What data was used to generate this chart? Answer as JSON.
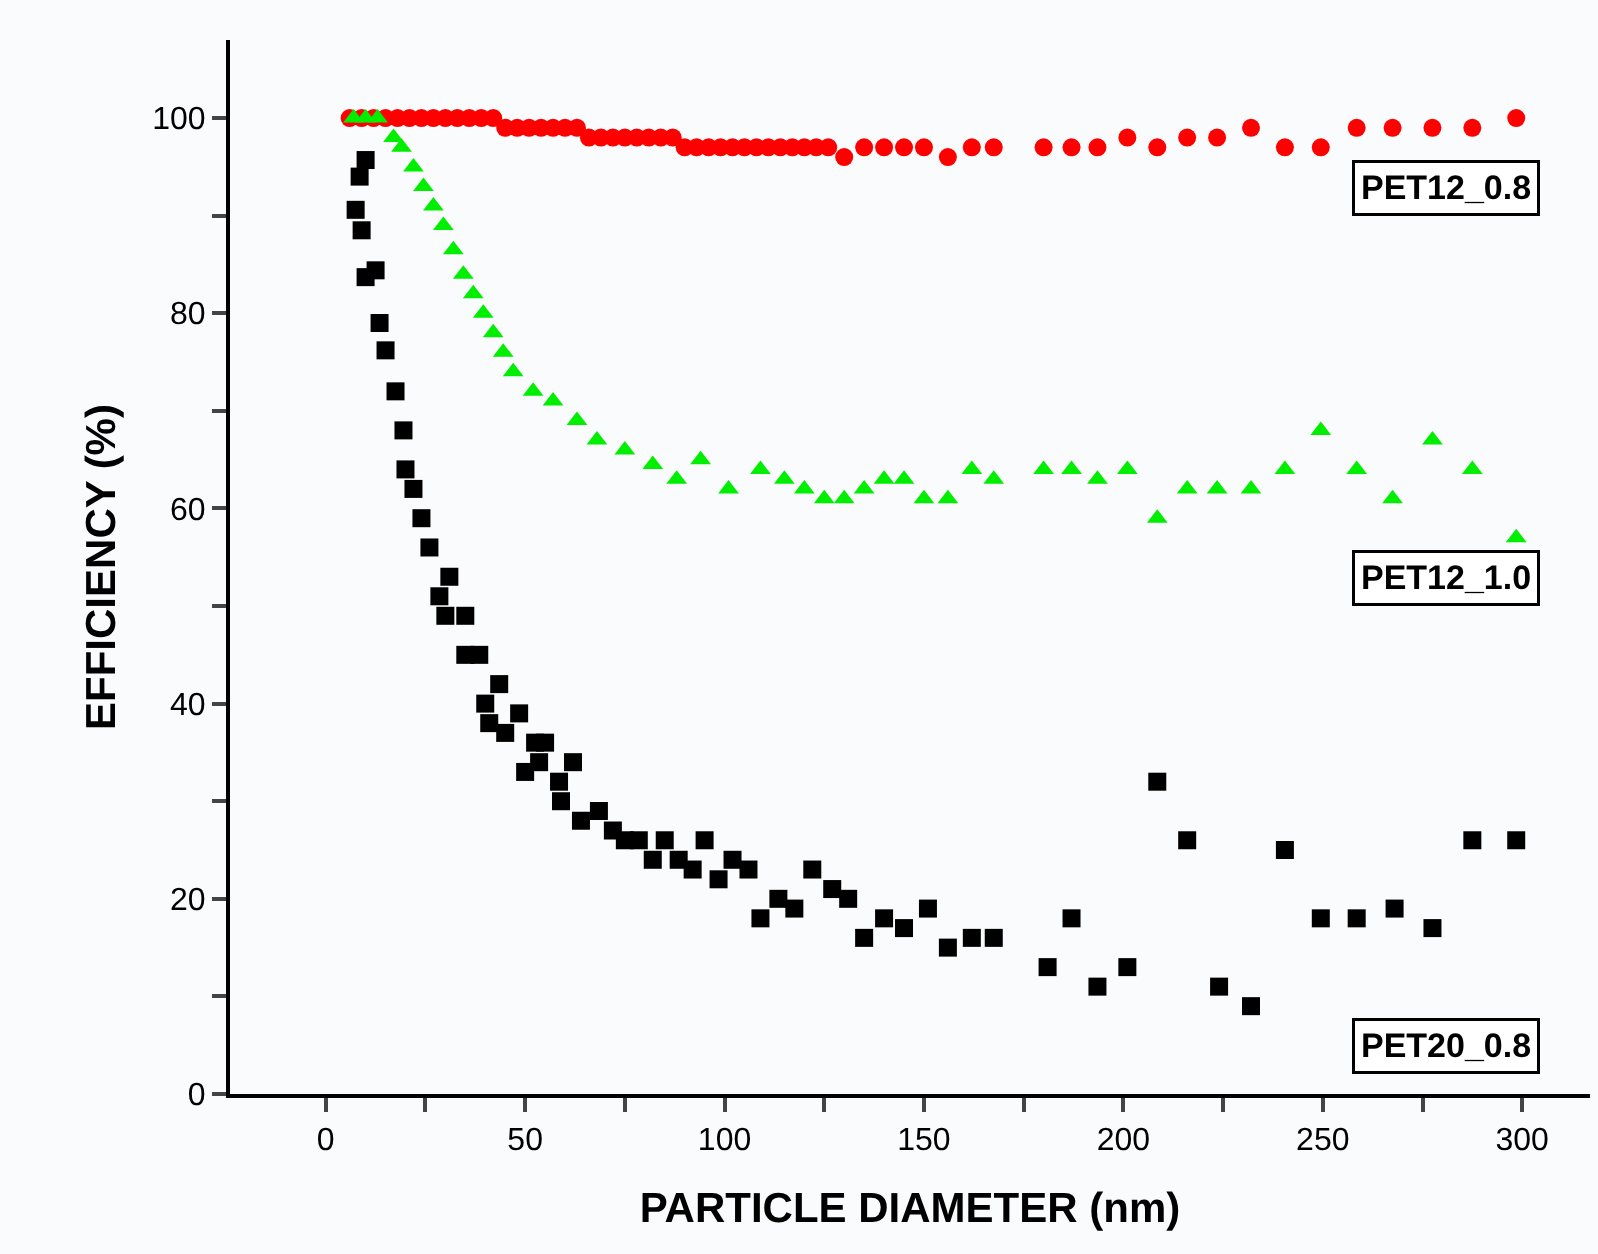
{
  "chart_data": {
    "type": "scatter",
    "xlabel": "PARTICLE DIAMETER (nm)",
    "ylabel": "EFFICIENCY (%)",
    "xlim": [
      -24,
      317
    ],
    "xticks": [
      0,
      {
        "value": 25,
        "label": null
      },
      50,
      {
        "value": 75,
        "label": null
      },
      100,
      {
        "value": 125,
        "label": null
      },
      150,
      {
        "value": 175,
        "label": null
      },
      200,
      {
        "value": 225,
        "label": null
      },
      250,
      {
        "value": 275,
        "label": null
      },
      300
    ],
    "ylim": [
      0,
      108
    ],
    "yticks": [
      0,
      {
        "value": 10,
        "label": null
      },
      20,
      {
        "value": 30,
        "label": null
      },
      40,
      {
        "value": 50,
        "label": null
      },
      60,
      {
        "value": 70,
        "label": null
      },
      80,
      {
        "value": 90,
        "label": null
      },
      100
    ],
    "legend": false,
    "series": [
      {
        "name": "PET12_0.8",
        "color": "#ff0000",
        "marker": "circle",
        "x": [
          6,
          9,
          12,
          15,
          18,
          21,
          24,
          27,
          30,
          33,
          36,
          39,
          42,
          45,
          48,
          51,
          54,
          57,
          60,
          63,
          66,
          69,
          72,
          75,
          78,
          81,
          84,
          87,
          90,
          93,
          96,
          99,
          102,
          105,
          108,
          111,
          114,
          117,
          120,
          123,
          126,
          130,
          135,
          140,
          145,
          150,
          156,
          162,
          167.5,
          180,
          187,
          193.5,
          201,
          208.5,
          216,
          223.5,
          232,
          240.5,
          249.5,
          258.5,
          267.5,
          277.5,
          287.5,
          298.5
        ],
        "values": [
          100,
          100,
          100,
          100,
          100,
          100,
          100,
          100,
          100,
          100,
          100,
          100,
          100,
          99,
          99,
          99,
          99,
          99,
          99,
          99,
          98,
          98,
          98,
          98,
          98,
          98,
          98,
          98,
          97,
          97,
          97,
          97,
          97,
          97,
          97,
          97,
          97,
          97,
          97,
          97,
          97,
          96,
          97,
          97,
          97,
          97,
          96,
          97,
          97,
          97,
          97,
          97,
          98,
          97,
          98,
          98,
          99,
          97,
          97,
          99,
          99,
          99,
          99,
          100
        ]
      },
      {
        "name": "PET12_1.0",
        "color": "#00ee00",
        "marker": "triangle",
        "x": [
          7,
          10,
          13,
          17,
          19,
          22,
          24.5,
          27,
          29.5,
          32,
          34.5,
          37,
          39.5,
          42,
          44.5,
          47,
          52,
          57,
          63,
          68,
          75,
          82,
          88,
          94,
          101,
          109,
          115,
          120,
          125,
          130,
          135,
          140,
          145,
          150,
          156,
          162,
          167.5,
          180,
          187,
          193.5,
          201,
          208.5,
          216,
          223.5,
          232,
          240.5,
          249.5,
          258.5,
          267.5,
          277.5,
          287.5,
          298.5
        ],
        "values": [
          100,
          100,
          100,
          98,
          97,
          95,
          93,
          91,
          89,
          86.5,
          84,
          82,
          80,
          78,
          76,
          74,
          72,
          71,
          69,
          67,
          66,
          64.5,
          63,
          65,
          62,
          64,
          63,
          62,
          61,
          61,
          62,
          63,
          63,
          61,
          61,
          64,
          63,
          64,
          64,
          63,
          64,
          59,
          62,
          62,
          62,
          64,
          68,
          64,
          61,
          67,
          64,
          57
        ]
      },
      {
        "name": "PET20_0.8",
        "color": "#000000",
        "marker": "square",
        "x": [
          7.5,
          8.5,
          9,
          10,
          10,
          12.5,
          13.5,
          15,
          17.5,
          19.5,
          20,
          22,
          24,
          26,
          28.5,
          30,
          31,
          35,
          35,
          38.5,
          40,
          41,
          43.5,
          45,
          48.5,
          50,
          52.5,
          53.5,
          55,
          58.5,
          59,
          62,
          64,
          68.5,
          72,
          75,
          78.5,
          82,
          85,
          88.5,
          92,
          95,
          98.5,
          102,
          106,
          109,
          113.5,
          117.5,
          122,
          127,
          131,
          135,
          140,
          145,
          151,
          156,
          162,
          167.5,
          181,
          187,
          193.5,
          201,
          208.5,
          216,
          224,
          232,
          240.5,
          249.5,
          258.5,
          268,
          277.5,
          287.5,
          298.5
        ],
        "values": [
          90.6,
          94,
          88.5,
          95.7,
          83.7,
          84.4,
          79,
          76.2,
          72,
          68,
          64,
          62,
          59,
          56,
          51,
          49,
          53,
          49,
          45,
          45,
          40,
          38,
          42,
          37,
          39,
          33,
          36,
          34,
          36,
          32,
          30,
          34,
          28,
          29,
          27,
          26,
          26,
          24,
          26,
          24,
          23,
          26,
          22,
          24,
          23,
          18,
          20,
          19,
          23,
          21,
          20,
          16,
          18,
          17,
          19,
          15,
          16,
          16,
          13,
          18,
          11,
          13,
          32,
          26,
          11,
          9,
          25,
          18,
          18,
          19,
          17,
          26,
          26
        ]
      }
    ]
  }
}
